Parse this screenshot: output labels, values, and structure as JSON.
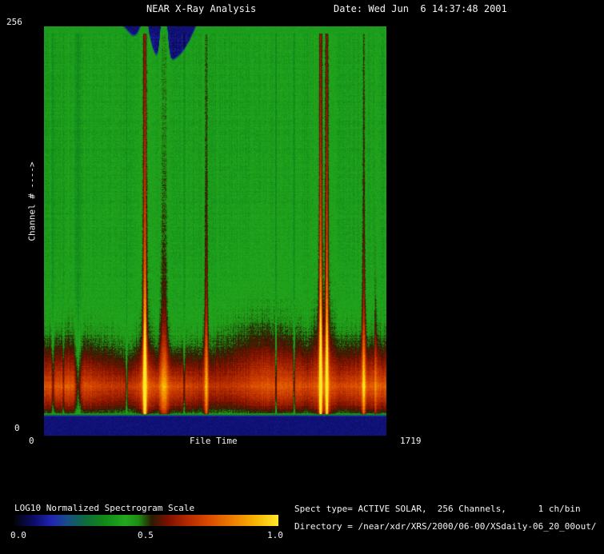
{
  "header": {
    "title": "NEAR X-Ray Analysis",
    "date": "Date: Wed Jun  6 14:37:48 2001"
  },
  "y_axis": {
    "max_label": "256",
    "min_label": "0",
    "title": "Channel # ---->"
  },
  "x_axis": {
    "min_label": "0",
    "title": "File Time",
    "max_label": "1719"
  },
  "colorbar": {
    "title": "LOG10 Normalized Spectrogram Scale",
    "ticks": [
      "0.0",
      "0.5",
      "1.0"
    ]
  },
  "info": {
    "spect": "Spect type= ACTIVE SOLAR,  256 Channels,      1 ch/bin",
    "directory": "Directory = /near/xdr/XRS/2000/06-00/XSdaily-06_20_00out/"
  },
  "chart_data": {
    "type": "heatmap",
    "title": "NEAR X-Ray Analysis Spectrogram",
    "xlabel": "File Time",
    "ylabel": "Channel #",
    "x_range": [
      0,
      1719
    ],
    "y_range": [
      0,
      256
    ],
    "scale_label": "LOG10 Normalized Spectrogram Scale",
    "scale_range": [
      0.0,
      1.0
    ],
    "colormap": [
      {
        "t": 0.0,
        "c": "#04040c"
      },
      {
        "t": 0.07,
        "c": "#0c0c66"
      },
      {
        "t": 0.14,
        "c": "#2026b2"
      },
      {
        "t": 0.2,
        "c": "#184e86"
      },
      {
        "t": 0.27,
        "c": "#0f6c3a"
      },
      {
        "t": 0.34,
        "c": "#118a18"
      },
      {
        "t": 0.42,
        "c": "#23a81e"
      },
      {
        "t": 0.47,
        "c": "#1d8c14"
      },
      {
        "t": 0.52,
        "c": "#2a1c02"
      },
      {
        "t": 0.58,
        "c": "#7c1000"
      },
      {
        "t": 0.65,
        "c": "#b02800"
      },
      {
        "t": 0.73,
        "c": "#d84800"
      },
      {
        "t": 0.82,
        "c": "#eb7a00"
      },
      {
        "t": 0.91,
        "c": "#f7b200"
      },
      {
        "t": 1.0,
        "c": "#ffe82a"
      }
    ],
    "background_level": 0.385,
    "band_center": 31,
    "vertical_profile": [
      [
        0,
        0.085
      ],
      [
        12,
        0.085
      ],
      [
        14,
        0.5
      ],
      [
        18,
        0.57
      ],
      [
        24,
        0.65
      ],
      [
        31,
        0.72
      ],
      [
        38,
        0.64
      ],
      [
        48,
        0.54
      ],
      [
        62,
        0.45
      ],
      [
        80,
        0.405
      ],
      [
        120,
        0.39
      ],
      [
        250,
        0.39
      ],
      [
        252,
        0.085
      ],
      [
        256,
        0.085
      ]
    ],
    "upper_tail": {
      "bulge_time": 1010,
      "bulge_sigma": 170,
      "bulge_amp": 0.5
    },
    "flares": [
      {
        "time": 506,
        "sigma": 6,
        "amp": 0.52
      },
      {
        "time": 506,
        "sigma": 25,
        "amp": 0.08
      },
      {
        "time": 602,
        "sigma": 14,
        "amp": 0.2
      },
      {
        "time": 815,
        "sigma": 6,
        "amp": 0.26
      },
      {
        "time": 1390,
        "sigma": 5,
        "amp": 0.55
      },
      {
        "time": 1422,
        "sigma": 5,
        "amp": 0.45
      },
      {
        "time": 1405,
        "sigma": 30,
        "amp": 0.1
      },
      {
        "time": 1607,
        "sigma": 6,
        "amp": 0.26
      },
      {
        "time": 1667,
        "sigma": 4,
        "amp": 0.12
      }
    ],
    "gaps": [
      {
        "time": 44,
        "sigma": 4,
        "amp": 0.1
      },
      {
        "time": 96,
        "sigma": 3,
        "amp": 0.08
      },
      {
        "time": 170,
        "sigma": 10,
        "amp": 0.12
      },
      {
        "time": 414,
        "sigma": 3,
        "amp": 0.14
      },
      {
        "time": 703,
        "sigma": 3,
        "amp": 0.08
      },
      {
        "time": 1165,
        "sigma": 3,
        "amp": 0.12
      },
      {
        "time": 1257,
        "sigma": 3,
        "amp": 0.12
      }
    ],
    "noise": {
      "pixel": 0.03,
      "column": 0.018,
      "row": 0.012
    }
  }
}
